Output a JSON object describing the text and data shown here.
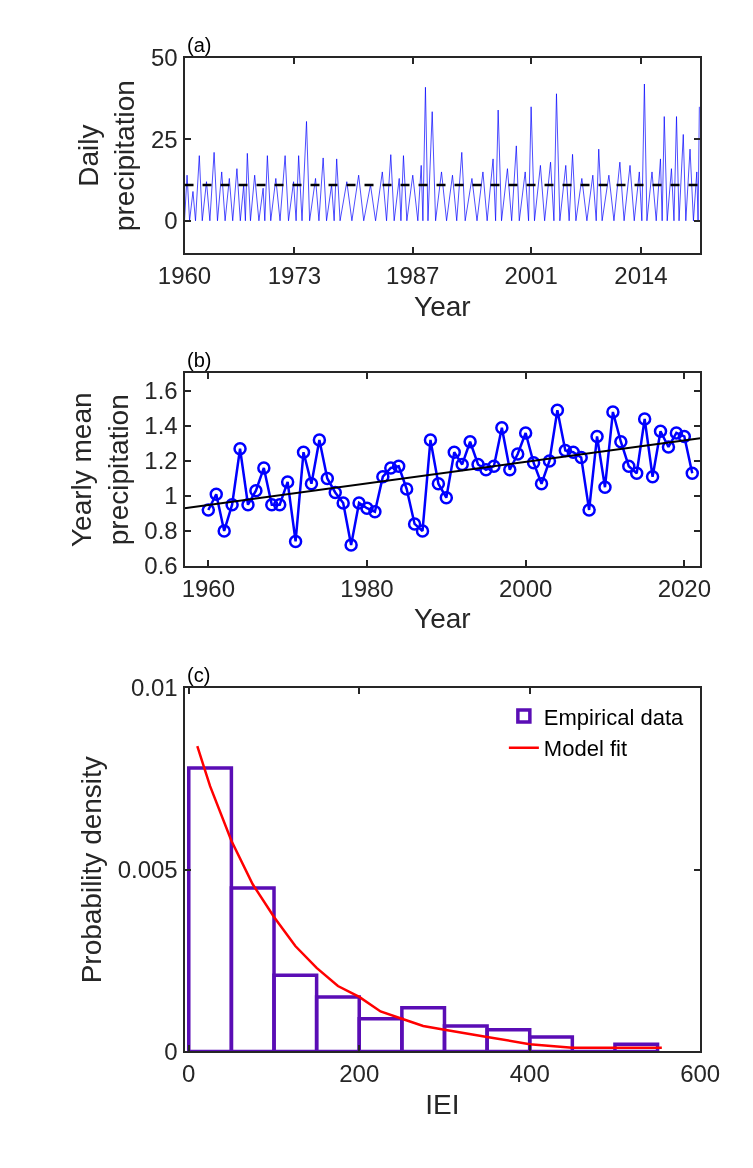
{
  "chart_data": [
    {
      "type": "line",
      "xlabel": "Year",
      "ylabel": "Daily\nprecipitation",
      "annotations": [
        "(a)"
      ],
      "xlim": [
        1960,
        2021
      ],
      "xticks": [
        1960,
        1973,
        1987,
        2001,
        2014
      ],
      "ylim": [
        -10,
        50
      ],
      "yticks": [
        0,
        25,
        50
      ],
      "legend": false,
      "line_style": "solid",
      "marker": "none",
      "ref_lines": [
        {
          "axis": "y",
          "value": 11,
          "color": "#000000",
          "line_style": "dashed"
        }
      ],
      "series": [
        {
          "color": "#0000ff",
          "x": [
            1960.0,
            1960.3,
            1960.6,
            1961.0,
            1961.3,
            1961.75,
            1962.1,
            1962.6,
            1963.0,
            1963.5,
            1963.9,
            1964.4,
            1964.8,
            1965.3,
            1965.7,
            1966.2,
            1966.6,
            1967.0,
            1967.2,
            1967.43,
            1967.8,
            1968.3,
            1968.8,
            1969.3,
            1969.5,
            1969.8,
            1970.2,
            1970.8,
            1971.3,
            1971.9,
            1972.3,
            1972.9,
            1973.2,
            1973.5,
            1973.9,
            1974.43,
            1974.8,
            1975.5,
            1975.9,
            1976.4,
            1976.8,
            1977.4,
            1977.7,
            1978.0,
            1978.4,
            1979.2,
            1979.8,
            1980.6,
            1981.2,
            1982.0,
            1982.6,
            1983.4,
            1983.9,
            1984.4,
            1984.8,
            1985.4,
            1985.6,
            1985.9,
            1986.3,
            1987.0,
            1987.6,
            1988.0,
            1988.2,
            1988.5,
            1988.8,
            1989.3,
            1989.7,
            1990.4,
            1991.0,
            1991.7,
            1992.2,
            1992.8,
            1993.2,
            1994.0,
            1994.6,
            1995.3,
            1995.8,
            1996.5,
            1996.8,
            1997.1,
            1997.5,
            1998.2,
            1998.7,
            1999.25,
            1999.6,
            2000.3,
            2000.7,
            2001.0,
            2001.4,
            2002.1,
            2002.6,
            2003.3,
            2003.7,
            2004.0,
            2004.4,
            2005.1,
            2005.5,
            2005.9,
            2006.3,
            2007.0,
            2007.6,
            2008.3,
            2008.7,
            2009.0,
            2009.4,
            2010.2,
            2010.8,
            2011.5,
            2012.0,
            2012.7,
            2013.2,
            2013.8,
            2014.1,
            2014.4,
            2014.7,
            2015.3,
            2015.8,
            2016.3,
            2016.5,
            2016.75,
            2017.1,
            2017.6,
            2017.9,
            2018.2,
            2018.5,
            2019.0,
            2019.3,
            2019.8,
            2020.2,
            2020.6,
            2020.75,
            2020.9
          ],
          "values": [
            0,
            14,
            0,
            9,
            0,
            20,
            0,
            12,
            0,
            21,
            0,
            15,
            0,
            13,
            0,
            16,
            0,
            11,
            0,
            20.7,
            0,
            14,
            0,
            10,
            0,
            20,
            0,
            13,
            0,
            20,
            0,
            12,
            0,
            20,
            0,
            30.5,
            0,
            13,
            0,
            19.3,
            0,
            11,
            0,
            19,
            0,
            12,
            0,
            14,
            0,
            11,
            0,
            15,
            0,
            20.3,
            0,
            13,
            0,
            20,
            0,
            14,
            0,
            17,
            0,
            41,
            0,
            33.5,
            0,
            15,
            0,
            14,
            0,
            21,
            0,
            13,
            0,
            15,
            0,
            19,
            0,
            34,
            0,
            16,
            0,
            23,
            0,
            15,
            0,
            35,
            0,
            17,
            0,
            18,
            0,
            39,
            0,
            17,
            0,
            20.4,
            0,
            13,
            0,
            14,
            0,
            22,
            0,
            14,
            0,
            18,
            0,
            17,
            0,
            15,
            0,
            42,
            0,
            15,
            0,
            19,
            0,
            32,
            0,
            16,
            0,
            32,
            0,
            26.5,
            0,
            22,
            0,
            15,
            0,
            35
          ]
        }
      ]
    },
    {
      "type": "line",
      "xlabel": "Year",
      "ylabel": "Yearly mean\nprecipitation",
      "annotations": [
        "(b)"
      ],
      "xlim": [
        1957,
        2022
      ],
      "xticks": [
        1960,
        1980,
        2000,
        2020
      ],
      "ylim": [
        0.6,
        1.7
      ],
      "yticks": [
        {
          "value": 0.6,
          "label": "0.6"
        },
        {
          "value": 0.8,
          "label": "0.8"
        },
        1,
        {
          "value": 1.2,
          "label": "1.2"
        },
        {
          "value": 1.4,
          "label": "1.4"
        },
        {
          "value": 1.6,
          "label": "1.6"
        }
      ],
      "legend": false,
      "series": [
        {
          "type": "line",
          "color": "#0000ff",
          "marker": "circle",
          "line_style": "solid",
          "x": [
            1960,
            1961,
            1962,
            1963,
            1964,
            1965,
            1966,
            1967,
            1968,
            1969,
            1970,
            1971,
            1972,
            1973,
            1974,
            1975,
            1976,
            1977,
            1978,
            1979,
            1980,
            1981,
            1982,
            1983,
            1984,
            1985,
            1986,
            1987,
            1988,
            1989,
            1990,
            1991,
            1992,
            1993,
            1994,
            1995,
            1996,
            1997,
            1998,
            1999,
            2000,
            2001,
            2002,
            2003,
            2004,
            2005,
            2006,
            2007,
            2008,
            2009,
            2010,
            2011,
            2012,
            2013,
            2014,
            2015,
            2016,
            2017,
            2018,
            2019,
            2020,
            2021
          ],
          "values": [
            0.92,
            1.01,
            0.8,
            0.95,
            1.27,
            0.95,
            1.03,
            1.16,
            0.95,
            0.95,
            1.08,
            0.74,
            1.25,
            1.07,
            1.32,
            1.1,
            1.02,
            0.96,
            0.72,
            0.96,
            0.93,
            0.91,
            1.11,
            1.16,
            1.17,
            1.04,
            0.84,
            0.8,
            1.32,
            1.07,
            0.99,
            1.25,
            1.18,
            1.31,
            1.18,
            1.15,
            1.17,
            1.39,
            1.15,
            1.24,
            1.36,
            1.19,
            1.07,
            1.2,
            1.49,
            1.26,
            1.25,
            1.22,
            0.92,
            1.34,
            1.05,
            1.48,
            1.31,
            1.17,
            1.13,
            1.44,
            1.11,
            1.37,
            1.28,
            1.36,
            1.34,
            1.13
          ]
        },
        {
          "type": "line",
          "color": "#000000",
          "marker": "none",
          "line_style": "solid",
          "x": [
            1957,
            2022
          ],
          "values": [
            0.93,
            1.33
          ]
        }
      ]
    },
    {
      "type": "histogram",
      "xlabel": "IEI",
      "ylabel": "Probability density",
      "annotations": [
        "(c)"
      ],
      "xlim": [
        -5,
        600
      ],
      "xticks": [
        0,
        200,
        400,
        600
      ],
      "ylim": [
        0,
        0.01
      ],
      "yticks": [
        0,
        0.005,
        0.01
      ],
      "legend": "top right",
      "series": [
        {
          "type": "histogram",
          "name": "Empirical data",
          "color": "#5a0db5",
          "bins": [
            0,
            50,
            100,
            150,
            200,
            250,
            300,
            350,
            400,
            450,
            500,
            550
          ],
          "values": [
            0.0078,
            0.0045,
            0.0021,
            0.0015,
            0.0009,
            0.0012,
            0.0007,
            0.0006,
            0.0004,
            0,
            0.0002
          ]
        },
        {
          "type": "line",
          "name": "Model fit",
          "color": "#ff0000",
          "marker": "none",
          "line_style": "solid",
          "x": [
            10,
            25,
            50,
            75,
            100,
            125,
            150,
            175,
            200,
            225,
            250,
            275,
            300,
            350,
            400,
            450,
            500,
            555
          ],
          "values": [
            0.0084,
            0.0073,
            0.0058,
            0.0046,
            0.0037,
            0.0029,
            0.0023,
            0.0018,
            0.0015,
            0.0011,
            0.0009,
            0.0007,
            0.0006,
            0.0004,
            0.0002,
            0.0001,
            0.0001,
            0.0001
          ]
        }
      ]
    }
  ]
}
